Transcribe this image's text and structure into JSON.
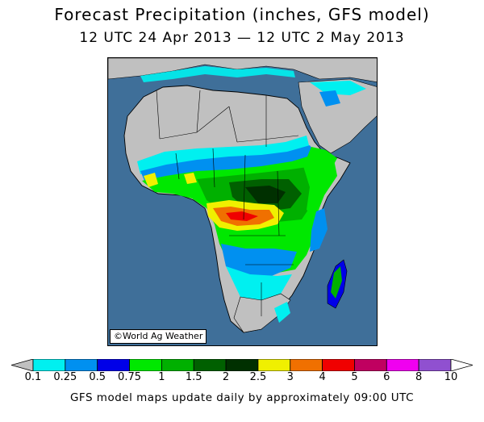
{
  "map": {
    "title": "Forecast Precipitation (inches, GFS model)",
    "subtitle": "12 UTC 24 Apr 2013 — 12 UTC 2 May 2013",
    "credit": "©World Ag Weather",
    "footer": "GFS model maps update daily by approximately 09:00 UTC",
    "ocean_color": "#3f6f99",
    "land_color": "#c0c0c0"
  },
  "legend": {
    "ticks": [
      "0.1",
      "0.25",
      "0.5",
      "0.75",
      "1",
      "1.5",
      "2",
      "2.5",
      "3",
      "4",
      "5",
      "6",
      "8",
      "10"
    ],
    "colors": [
      "#c0c0c0",
      "#00f0f0",
      "#0090f0",
      "#0000e8",
      "#00e800",
      "#00b000",
      "#006000",
      "#003000",
      "#f0f000",
      "#f07000",
      "#f00000",
      "#c00060",
      "#f000f0",
      "#9050d0",
      "#ffffff"
    ]
  }
}
